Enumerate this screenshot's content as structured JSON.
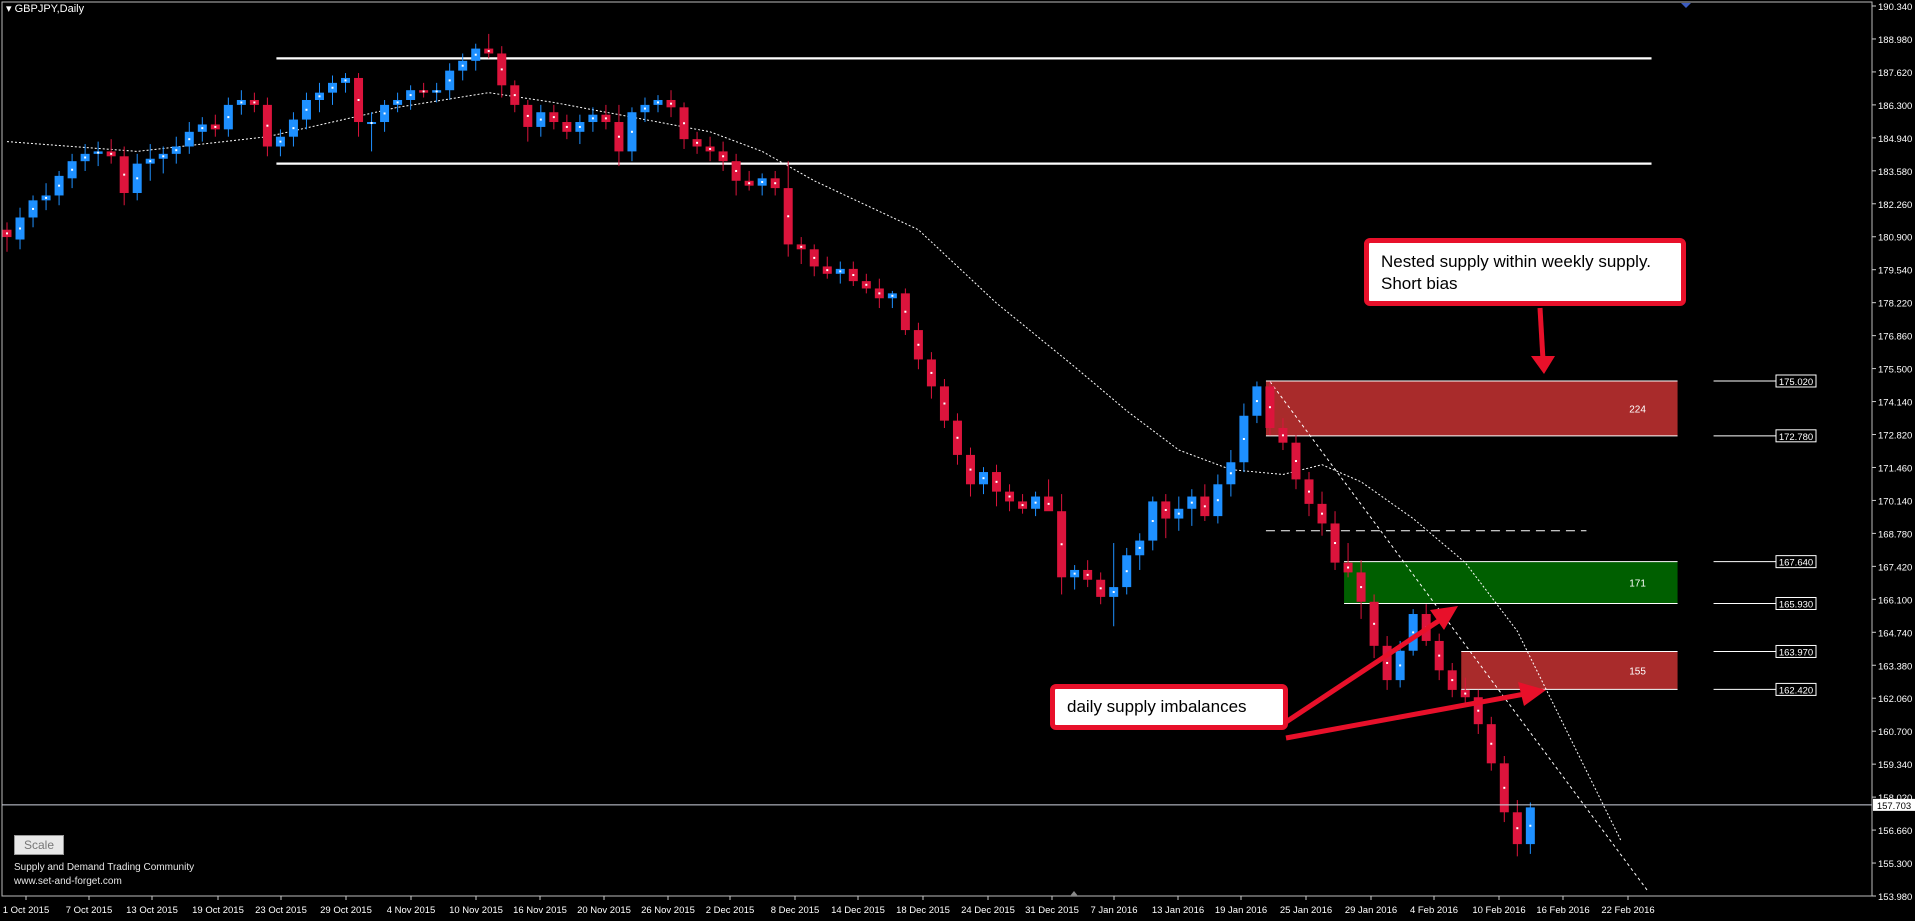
{
  "window": {
    "title": "GBPJPY,Daily",
    "scale_button": "Scale",
    "credit_line1": "Supply and Demand Trading Community",
    "credit_line2": "www.set-and-forget.com"
  },
  "annotations": {
    "top_callout_line1": "Nested supply within weekly supply.",
    "top_callout_line2": "Short bias",
    "bottom_callout": "daily supply imbalances"
  },
  "colors": {
    "background": "#000000",
    "bull": "#1e90ff",
    "bear": "#dc143c",
    "supply_zone": "#b22d2d",
    "demand_zone": "#006400",
    "callout_border": "#e8102a",
    "axis_text": "#ffffff"
  },
  "chart_data": {
    "type": "candlestick",
    "symbol": "GBPJPY",
    "timeframe": "Daily",
    "ylim": [
      153.98,
      190.34
    ],
    "y_ticks": [
      "190.340",
      "188.980",
      "187.620",
      "186.300",
      "184.940",
      "183.580",
      "182.260",
      "180.900",
      "179.540",
      "178.220",
      "176.860",
      "175.500",
      "174.140",
      "172.820",
      "171.460",
      "170.140",
      "168.780",
      "167.420",
      "166.100",
      "164.740",
      "163.380",
      "162.060",
      "160.700",
      "159.340",
      "158.020",
      "156.660",
      "155.300",
      "153.980"
    ],
    "x_ticks": [
      "1 Oct 2015",
      "7 Oct 2015",
      "13 Oct 2015",
      "19 Oct 2015",
      "23 Oct 2015",
      "29 Oct 2015",
      "4 Nov 2015",
      "10 Nov 2015",
      "16 Nov 2015",
      "20 Nov 2015",
      "26 Nov 2015",
      "2 Dec 2015",
      "8 Dec 2015",
      "14 Dec 2015",
      "18 Dec 2015",
      "24 Dec 2015",
      "31 Dec 2015",
      "7 Jan 2016",
      "13 Jan 2016",
      "19 Jan 2016",
      "25 Jan 2016",
      "29 Jan 2016",
      "4 Feb 2016",
      "10 Feb 2016",
      "16 Feb 2016",
      "22 Feb 2016"
    ],
    "current_price": "157.703",
    "candles": [
      [
        181.2,
        181.5,
        180.3,
        180.9
      ],
      [
        180.8,
        182.1,
        180.4,
        181.7
      ],
      [
        181.7,
        182.6,
        181.3,
        182.4
      ],
      [
        182.4,
        183.1,
        182.0,
        182.6
      ],
      [
        182.6,
        183.6,
        182.2,
        183.4
      ],
      [
        183.3,
        184.3,
        182.9,
        184.0
      ],
      [
        184.0,
        184.7,
        183.6,
        184.3
      ],
      [
        184.3,
        184.8,
        183.8,
        184.4
      ],
      [
        184.4,
        184.9,
        183.9,
        184.2
      ],
      [
        184.2,
        184.6,
        182.2,
        182.7
      ],
      [
        182.7,
        184.3,
        182.4,
        183.9
      ],
      [
        183.9,
        184.7,
        183.2,
        184.1
      ],
      [
        184.1,
        184.6,
        183.5,
        184.3
      ],
      [
        184.3,
        185.0,
        183.9,
        184.6
      ],
      [
        184.6,
        185.6,
        184.3,
        185.2
      ],
      [
        185.2,
        185.8,
        184.8,
        185.5
      ],
      [
        185.5,
        185.9,
        185.0,
        185.3
      ],
      [
        185.3,
        186.6,
        185.0,
        186.3
      ],
      [
        186.3,
        186.9,
        185.9,
        186.5
      ],
      [
        186.5,
        186.8,
        186.0,
        186.3
      ],
      [
        186.3,
        186.6,
        184.2,
        184.6
      ],
      [
        184.6,
        185.3,
        184.2,
        185.0
      ],
      [
        185.0,
        186.0,
        184.6,
        185.7
      ],
      [
        185.7,
        186.8,
        185.3,
        186.5
      ],
      [
        186.5,
        187.2,
        186.0,
        186.8
      ],
      [
        186.8,
        187.5,
        186.3,
        187.2
      ],
      [
        187.2,
        187.6,
        186.8,
        187.4
      ],
      [
        187.4,
        187.6,
        185.0,
        185.6
      ],
      [
        185.6,
        186.0,
        184.4,
        185.6
      ],
      [
        185.6,
        186.5,
        185.2,
        186.3
      ],
      [
        186.3,
        186.8,
        186.0,
        186.5
      ],
      [
        186.5,
        187.1,
        186.1,
        186.9
      ],
      [
        186.9,
        187.2,
        186.6,
        186.8
      ],
      [
        186.8,
        187.2,
        186.4,
        186.9
      ],
      [
        186.9,
        188.0,
        186.5,
        187.7
      ],
      [
        187.7,
        188.4,
        187.3,
        188.1
      ],
      [
        188.1,
        188.8,
        187.7,
        188.6
      ],
      [
        188.6,
        189.2,
        188.2,
        188.4
      ],
      [
        188.4,
        188.7,
        186.6,
        187.1
      ],
      [
        187.1,
        187.3,
        186.0,
        186.3
      ],
      [
        186.3,
        186.5,
        184.8,
        185.4
      ],
      [
        185.4,
        186.3,
        185.0,
        186.0
      ],
      [
        186.0,
        186.3,
        185.3,
        185.6
      ],
      [
        185.6,
        185.9,
        184.9,
        185.2
      ],
      [
        185.2,
        185.9,
        184.7,
        185.6
      ],
      [
        185.6,
        186.2,
        185.2,
        185.9
      ],
      [
        185.9,
        186.3,
        185.3,
        185.6
      ],
      [
        185.6,
        186.3,
        183.8,
        184.4
      ],
      [
        184.4,
        186.2,
        184.0,
        186.0
      ],
      [
        186.0,
        186.6,
        185.6,
        186.3
      ],
      [
        186.3,
        186.7,
        186.0,
        186.5
      ],
      [
        186.5,
        186.9,
        185.8,
        186.2
      ],
      [
        186.2,
        186.4,
        184.5,
        184.9
      ],
      [
        184.9,
        185.2,
        184.3,
        184.6
      ],
      [
        184.6,
        185.0,
        184.0,
        184.4
      ],
      [
        184.4,
        184.8,
        183.6,
        184.0
      ],
      [
        184.0,
        184.3,
        182.6,
        183.2
      ],
      [
        183.2,
        183.6,
        182.8,
        183.0
      ],
      [
        183.0,
        183.5,
        182.6,
        183.3
      ],
      [
        183.3,
        183.6,
        182.6,
        182.9
      ],
      [
        182.9,
        184.0,
        180.1,
        180.6
      ],
      [
        180.6,
        180.9,
        179.8,
        180.4
      ],
      [
        180.4,
        180.6,
        179.3,
        179.7
      ],
      [
        179.7,
        180.1,
        179.2,
        179.4
      ],
      [
        179.4,
        179.9,
        179.0,
        179.6
      ],
      [
        179.6,
        179.9,
        178.9,
        179.1
      ],
      [
        179.1,
        179.4,
        178.6,
        178.8
      ],
      [
        178.8,
        179.2,
        178.0,
        178.4
      ],
      [
        178.4,
        178.7,
        178.0,
        178.6
      ],
      [
        178.6,
        178.8,
        176.9,
        177.1
      ],
      [
        177.1,
        177.4,
        175.5,
        175.9
      ],
      [
        175.9,
        176.2,
        174.3,
        174.8
      ],
      [
        174.8,
        175.1,
        173.1,
        173.4
      ],
      [
        173.4,
        173.7,
        171.6,
        172.0
      ],
      [
        172.0,
        172.3,
        170.3,
        170.8
      ],
      [
        170.8,
        171.5,
        170.4,
        171.3
      ],
      [
        171.3,
        171.6,
        169.9,
        170.5
      ],
      [
        170.5,
        170.8,
        169.7,
        170.1
      ],
      [
        170.1,
        170.4,
        169.6,
        169.8
      ],
      [
        169.8,
        170.5,
        169.5,
        170.3
      ],
      [
        170.3,
        171.0,
        169.9,
        169.7
      ],
      [
        169.7,
        170.4,
        166.3,
        167.0
      ],
      [
        167.0,
        167.5,
        166.5,
        167.3
      ],
      [
        167.3,
        167.7,
        166.6,
        166.9
      ],
      [
        166.9,
        167.2,
        165.9,
        166.2
      ],
      [
        166.2,
        168.4,
        165.0,
        166.6
      ],
      [
        166.6,
        168.2,
        166.3,
        167.9
      ],
      [
        167.9,
        168.8,
        167.3,
        168.5
      ],
      [
        168.5,
        170.3,
        168.1,
        170.1
      ],
      [
        170.1,
        170.4,
        168.6,
        169.4
      ],
      [
        169.4,
        170.3,
        168.9,
        169.8
      ],
      [
        169.8,
        170.6,
        169.1,
        170.3
      ],
      [
        170.3,
        170.8,
        169.3,
        169.5
      ],
      [
        169.5,
        171.2,
        169.2,
        170.8
      ],
      [
        170.8,
        172.2,
        170.3,
        171.7
      ],
      [
        171.7,
        174.1,
        171.3,
        173.6
      ],
      [
        173.6,
        175.0,
        173.3,
        174.8
      ],
      [
        174.8,
        175.0,
        172.8,
        173.1
      ],
      [
        173.1,
        173.5,
        172.2,
        172.5
      ],
      [
        172.5,
        172.8,
        170.6,
        171.0
      ],
      [
        171.0,
        171.3,
        169.5,
        170.0
      ],
      [
        170.0,
        170.5,
        168.7,
        169.2
      ],
      [
        169.2,
        169.7,
        167.3,
        167.6
      ],
      [
        167.6,
        168.4,
        167.0,
        167.2
      ],
      [
        167.2,
        167.7,
        165.3,
        166.0
      ],
      [
        166.0,
        166.3,
        163.7,
        164.2
      ],
      [
        164.2,
        164.6,
        162.4,
        162.8
      ],
      [
        162.8,
        164.4,
        162.5,
        164.0
      ],
      [
        164.0,
        165.7,
        163.8,
        165.5
      ],
      [
        165.5,
        165.9,
        164.2,
        164.4
      ],
      [
        164.4,
        164.7,
        162.8,
        163.2
      ],
      [
        163.2,
        163.5,
        162.1,
        162.4
      ],
      [
        162.4,
        162.9,
        161.7,
        162.1
      ],
      [
        162.1,
        162.4,
        160.6,
        161.0
      ],
      [
        161.0,
        161.3,
        159.1,
        159.4
      ],
      [
        159.4,
        159.7,
        157.0,
        157.4
      ],
      [
        157.4,
        157.9,
        155.6,
        156.1
      ],
      [
        156.1,
        157.8,
        155.7,
        157.6
      ]
    ],
    "ma": [
      [
        0,
        184.8
      ],
      [
        10,
        184.4
      ],
      [
        20,
        185.0
      ],
      [
        30,
        186.2
      ],
      [
        37,
        186.8
      ],
      [
        42,
        186.4
      ],
      [
        48,
        185.8
      ],
      [
        54,
        185.2
      ],
      [
        58,
        184.4
      ],
      [
        62,
        183.2
      ],
      [
        66,
        182.2
      ],
      [
        70,
        181.2
      ],
      [
        76,
        178.2
      ],
      [
        82,
        175.6
      ],
      [
        86,
        173.8
      ],
      [
        90,
        172.2
      ],
      [
        94,
        171.4
      ],
      [
        98,
        171.2
      ],
      [
        101,
        171.6
      ],
      [
        104,
        170.9
      ],
      [
        108,
        169.4
      ],
      [
        112,
        167.6
      ],
      [
        116,
        164.8
      ],
      [
        120,
        160.5
      ],
      [
        124,
        156.2
      ]
    ],
    "trend_line": [
      [
        97,
        175.0
      ],
      [
        126,
        154.2
      ]
    ],
    "horizontal_levels": [
      {
        "price": 188.2,
        "from": 21,
        "to": 126,
        "style": "solid"
      },
      {
        "price": 183.9,
        "from": 21,
        "to": 126,
        "style": "solid"
      },
      {
        "price": 168.9,
        "from": 97,
        "to": 121,
        "style": "dashed"
      }
    ],
    "zones": [
      {
        "type": "supply",
        "top": 175.02,
        "bottom": 172.78,
        "from": 97,
        "to": 128,
        "label": "224",
        "top_label": "175.020",
        "bottom_label": "172.780"
      },
      {
        "type": "demand",
        "top": 167.64,
        "bottom": 165.93,
        "from": 103,
        "to": 128,
        "label": "171",
        "top_label": "167.640",
        "bottom_label": "165.930"
      },
      {
        "type": "supply",
        "top": 163.97,
        "bottom": 162.42,
        "from": 112,
        "to": 128,
        "label": "155",
        "top_label": "163.970",
        "bottom_label": "162.420"
      }
    ]
  }
}
